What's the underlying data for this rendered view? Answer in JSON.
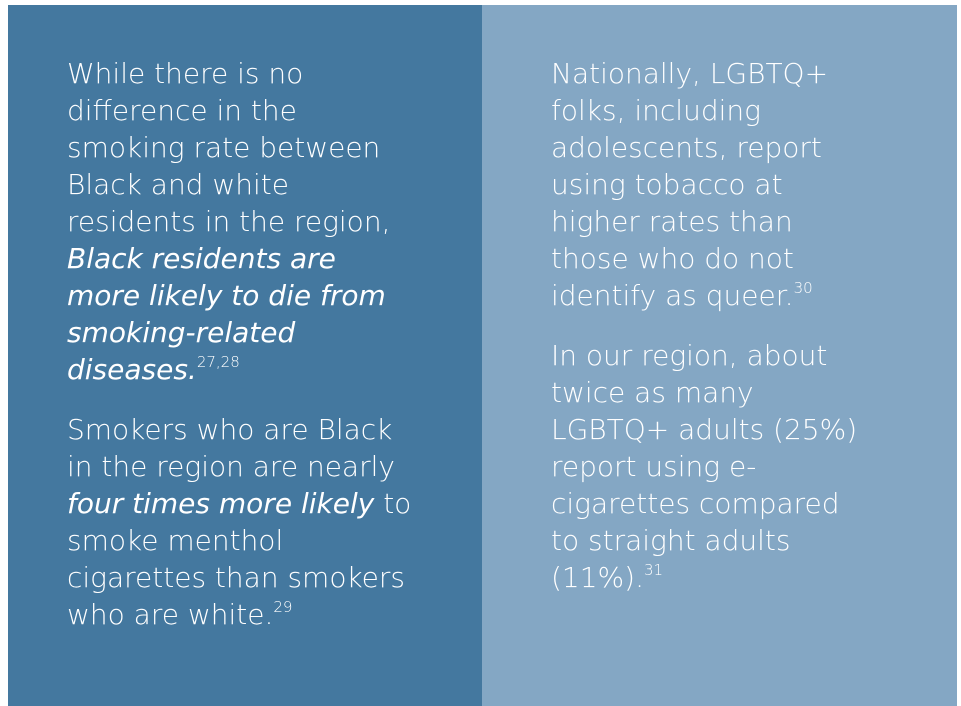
{
  "panels": [
    {
      "paragraphs": [
        {
          "runs": [
            {
              "text": "While there is no difference in the smoking rate between Black and white residents in the region, ",
              "style": "normal"
            },
            {
              "text": "Black residents are more likely to die from smoking-related diseases.",
              "style": "italic"
            },
            {
              "text": "27,28",
              "style": "sup"
            }
          ]
        },
        {
          "runs": [
            {
              "text": "Smokers who are Black in the region are nearly ",
              "style": "normal"
            },
            {
              "text": "four times more likely",
              "style": "italic"
            },
            {
              "text": " to smoke menthol cigarettes than smokers who are white.",
              "style": "normal"
            },
            {
              "text": "29",
              "style": "sup"
            }
          ]
        }
      ]
    },
    {
      "paragraphs": [
        {
          "runs": [
            {
              "text": "Nationally, LGBTQ+ folks, including adolescents, report using tobacco at higher rates than those who do not identify as queer.",
              "style": "normal"
            },
            {
              "text": "30",
              "style": "sup"
            }
          ]
        },
        {
          "runs": [
            {
              "text": "In our region, about twice as many LGBTQ+ adults (25%) report using e-cigarettes compared to straight adults (11%).",
              "style": "normal"
            },
            {
              "text": "31",
              "style": "sup"
            }
          ]
        }
      ]
    }
  ]
}
